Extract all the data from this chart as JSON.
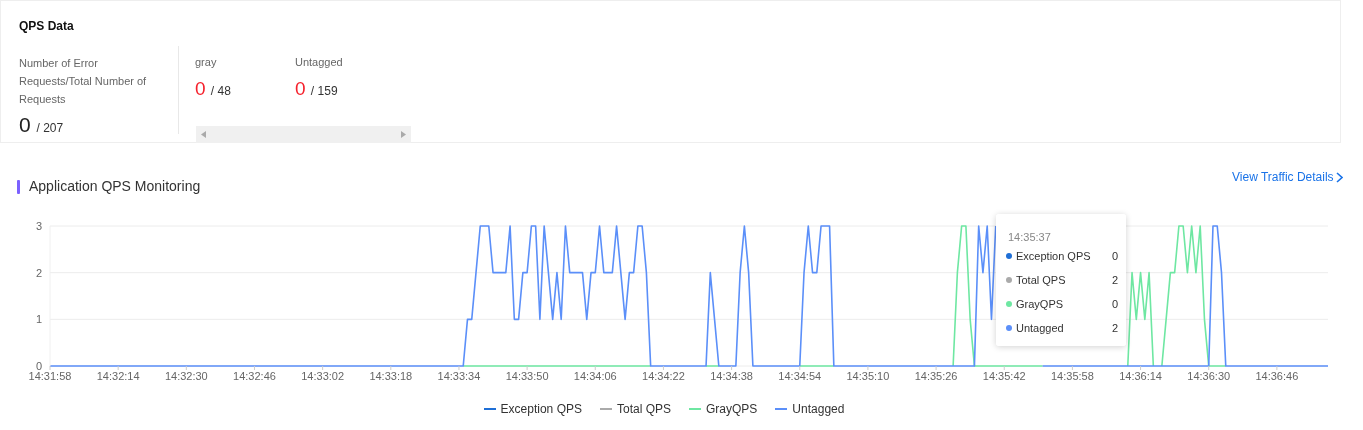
{
  "chart_data": {
    "type": "line",
    "title": "Application QPS Monitoring",
    "categories": [
      "14:31:58",
      null,
      null,
      null,
      null,
      null,
      null,
      null,
      null,
      null,
      null,
      null,
      null,
      null,
      null,
      null,
      "14:32:14",
      null,
      null,
      null,
      null,
      null,
      null,
      null,
      null,
      null,
      null,
      null,
      null,
      null,
      null,
      null,
      "14:32:30",
      null,
      null,
      null,
      null,
      null,
      null,
      null,
      null,
      null,
      null,
      null,
      null,
      null,
      null,
      null,
      "14:32:46",
      null,
      null,
      null,
      null,
      null,
      null,
      null,
      null,
      null,
      null,
      null,
      null,
      null,
      null,
      null,
      "14:33:02",
      null,
      null,
      null,
      null,
      null,
      null,
      null,
      null,
      null,
      null,
      null,
      null,
      null,
      null,
      null,
      "14:33:18",
      null,
      null,
      null,
      null,
      null,
      null,
      null,
      null,
      null,
      null,
      null,
      null,
      null,
      null,
      null,
      "14:33:34",
      null,
      null,
      null,
      null,
      null,
      null,
      null,
      null,
      null,
      null,
      null,
      null,
      null,
      null,
      null,
      "14:33:50",
      null,
      null,
      null,
      null,
      null,
      null,
      null,
      null,
      null,
      null,
      null,
      null,
      null,
      null,
      null,
      "14:34:06",
      null,
      null,
      null,
      null,
      null,
      null,
      null,
      null,
      null,
      null,
      null,
      null,
      null,
      null,
      null,
      "14:34:22",
      null,
      null,
      null,
      null,
      null,
      null,
      null,
      null,
      null,
      null,
      null,
      null,
      null,
      null,
      null,
      "14:34:38",
      null,
      null,
      null,
      null,
      null,
      null,
      null,
      null,
      null,
      null,
      null,
      null,
      null,
      null,
      null,
      "14:34:54",
      null,
      null,
      null,
      null,
      null,
      null,
      null,
      null,
      null,
      null,
      null,
      null,
      null,
      null,
      null,
      "14:35:10",
      null,
      null,
      null,
      null,
      null,
      null,
      null,
      null,
      null,
      null,
      null,
      null,
      null,
      null,
      null,
      "14:35:26",
      null,
      null,
      null,
      null,
      null,
      null,
      null,
      null,
      null,
      null,
      null,
      null,
      null,
      null,
      null,
      "14:35:42",
      null,
      null,
      null,
      null,
      null,
      null,
      null,
      null,
      null,
      null,
      null,
      null,
      null,
      null,
      null,
      "14:35:58",
      null,
      null,
      null,
      null,
      null,
      null,
      null,
      null,
      null,
      null,
      null,
      null,
      null,
      null,
      null,
      "14:36:14",
      null,
      null,
      null,
      null,
      null,
      null,
      null,
      null,
      null,
      null,
      null,
      null,
      null,
      null,
      null,
      "14:36:30",
      null,
      null,
      null,
      null,
      null,
      null,
      null,
      null,
      null,
      null,
      null,
      null,
      null,
      null,
      null,
      "14:36:46",
      null,
      null,
      null,
      null,
      null,
      null,
      null,
      null,
      null,
      null,
      null,
      null
    ],
    "series": [
      {
        "name": "Exception QPS",
        "color": "#1f6fd6",
        "values": [
          null,
          null,
          null,
          null,
          null,
          null,
          null,
          null,
          null,
          null,
          null,
          null,
          null,
          null,
          null,
          null,
          null,
          null,
          null,
          null,
          null,
          null,
          null,
          null,
          null,
          null,
          null,
          null,
          null,
          null,
          null,
          null,
          null,
          null,
          null,
          null,
          null,
          null,
          null,
          null,
          null,
          null,
          null,
          null,
          null,
          null,
          null,
          null,
          null,
          null,
          null,
          null,
          null,
          null,
          null,
          null,
          null,
          null,
          null,
          null,
          null,
          null,
          null,
          null,
          null,
          null,
          null,
          null,
          null,
          null,
          null,
          null,
          null,
          null,
          null,
          null,
          null,
          null,
          null,
          null,
          null,
          null,
          null,
          null,
          null,
          null,
          null,
          null,
          null,
          null,
          null,
          null,
          null,
          null,
          null,
          null,
          null,
          null,
          null,
          null,
          null,
          null,
          null,
          null,
          null,
          null,
          null,
          null,
          null,
          null,
          null,
          null,
          null,
          null,
          null,
          null,
          null,
          null,
          null,
          null,
          null,
          null,
          null,
          null,
          null,
          null,
          null,
          null,
          null,
          null,
          null,
          null,
          null,
          null,
          null,
          null,
          null,
          null,
          null,
          null,
          null,
          null,
          null,
          null,
          null,
          null,
          null,
          null,
          null,
          null,
          null,
          null,
          null,
          null,
          null,
          null,
          null,
          null,
          null,
          null,
          null,
          null,
          null,
          null,
          null,
          null,
          null,
          null,
          null,
          null,
          null,
          null,
          null,
          null,
          null,
          null,
          null,
          null,
          null,
          null,
          null,
          null,
          null,
          null,
          null,
          null,
          null,
          null,
          null,
          null,
          null,
          null,
          null,
          null,
          null,
          null,
          null,
          null,
          null,
          null,
          null,
          null,
          null,
          null,
          null,
          null,
          null,
          null,
          null,
          null,
          null,
          null,
          null,
          null,
          null,
          null,
          null,
          null,
          null,
          null,
          null,
          null,
          null,
          null,
          null,
          null,
          null,
          null,
          null,
          null,
          null,
          null,
          null,
          null,
          null,
          null,
          null,
          null,
          null,
          null,
          null,
          null,
          null,
          null,
          null,
          null,
          null,
          null,
          null,
          null,
          null,
          null,
          null,
          null,
          null,
          null,
          null,
          null,
          null,
          null,
          null,
          null,
          null,
          null,
          null,
          null,
          null,
          null,
          null,
          null,
          null,
          null,
          null,
          null,
          null,
          null,
          null,
          null,
          null,
          null,
          null,
          null,
          null,
          null,
          null,
          null,
          null,
          null,
          null,
          null,
          null,
          null,
          null,
          null,
          null,
          null,
          null,
          null,
          null,
          null,
          null
        ]
      },
      {
        "name": "Total QPS",
        "color": "#aaaaaa",
        "values": [
          null,
          null,
          null,
          null,
          null,
          null,
          null,
          null,
          null,
          null,
          null,
          null,
          null,
          null,
          null,
          null,
          null,
          null,
          null,
          null,
          null,
          null,
          null,
          null,
          null,
          null,
          null,
          null,
          null,
          null,
          null,
          null,
          null,
          null,
          null,
          null,
          null,
          null,
          null,
          null,
          null,
          null,
          null,
          null,
          null,
          null,
          null,
          null,
          null,
          null,
          null,
          null,
          null,
          null,
          null,
          null,
          null,
          null,
          null,
          null,
          null,
          null,
          null,
          null,
          null,
          null,
          null,
          null,
          null,
          null,
          null,
          null,
          null,
          null,
          null,
          null,
          null,
          null,
          null,
          null,
          null,
          null,
          null,
          null,
          null,
          null,
          null,
          null,
          null,
          null,
          null,
          null,
          null,
          null,
          null,
          null,
          null,
          null,
          null,
          null,
          null,
          null,
          null,
          null,
          null,
          null,
          null,
          null,
          null,
          null,
          null,
          null,
          null,
          null,
          null,
          null,
          null,
          null,
          null,
          null,
          null,
          null,
          null,
          null,
          null,
          null,
          null,
          null,
          null,
          null,
          null,
          null,
          null,
          null,
          null,
          null,
          null,
          null,
          null,
          null,
          null,
          null,
          null,
          null,
          null,
          null,
          null,
          null,
          null,
          null,
          null,
          null,
          null,
          null,
          null,
          null,
          null,
          null,
          null,
          null,
          null,
          null,
          null,
          null,
          null,
          null,
          null,
          null,
          null,
          null,
          null,
          null,
          null,
          null,
          null,
          null,
          null,
          null,
          null,
          null,
          null,
          null,
          null,
          null,
          null,
          null,
          null,
          null,
          null,
          null,
          null,
          null,
          null,
          null,
          null,
          null,
          null,
          null,
          null,
          null,
          null,
          null,
          null,
          null,
          null,
          null,
          null,
          null,
          null,
          null,
          null,
          null,
          null,
          null,
          null,
          null,
          null,
          null,
          null,
          null,
          null,
          null,
          null,
          null,
          null,
          null,
          null,
          null,
          null,
          null,
          null,
          null,
          null,
          null,
          null,
          null,
          null,
          null,
          null,
          null,
          null,
          null,
          null,
          null,
          null,
          null,
          null,
          null,
          null,
          null,
          null,
          null,
          null,
          null,
          null,
          null,
          null,
          null,
          null,
          null,
          null,
          null,
          null,
          null,
          null,
          null,
          null,
          null,
          null,
          null,
          null,
          null,
          null,
          null,
          null,
          null,
          null,
          null,
          null,
          null,
          null,
          null,
          null,
          null,
          null,
          null,
          null,
          null,
          null,
          null,
          null,
          null,
          null,
          null,
          null,
          null,
          null,
          null,
          null,
          null,
          null
        ]
      },
      {
        "name": "GrayQPS",
        "color": "#6ee7a2",
        "values": [
          null,
          null,
          null,
          null,
          null,
          null,
          null,
          null,
          null,
          null,
          null,
          null,
          null,
          null,
          null,
          null,
          null,
          null,
          null,
          null,
          null,
          null,
          null,
          null,
          null,
          null,
          null,
          null,
          null,
          null,
          null,
          null,
          null,
          null,
          null,
          null,
          null,
          null,
          null,
          null,
          null,
          null,
          null,
          null,
          null,
          null,
          null,
          null,
          null,
          null,
          null,
          null,
          null,
          null,
          null,
          null,
          null,
          null,
          null,
          null,
          null,
          null,
          null,
          null,
          null,
          null,
          null,
          null,
          null,
          null,
          null,
          null,
          null,
          null,
          null,
          null,
          null,
          null,
          null,
          null,
          null,
          null,
          null,
          null,
          null,
          null,
          null,
          null,
          null,
          null,
          null,
          null,
          null,
          null,
          null,
          null,
          null,
          0,
          0,
          0,
          0,
          0,
          0,
          0,
          0,
          0,
          0,
          0,
          0,
          0,
          0,
          0,
          0,
          0,
          0,
          0,
          0,
          0,
          0,
          0,
          0,
          0,
          0,
          0,
          0,
          0,
          0,
          0,
          0,
          0,
          0,
          0,
          0,
          0,
          0,
          0,
          0,
          0,
          0,
          0,
          0,
          0,
          null,
          null,
          null,
          null,
          null,
          null,
          null,
          null,
          null,
          null,
          null,
          null,
          0,
          0,
          0,
          0,
          null,
          null,
          null,
          null,
          null,
          null,
          null,
          null,
          null,
          null,
          null,
          null,
          null,
          null,
          null,
          null,
          null,
          null,
          0,
          0,
          0,
          0,
          0,
          0,
          0,
          0,
          0,
          null,
          null,
          null,
          null,
          null,
          null,
          null,
          null,
          null,
          null,
          null,
          null,
          null,
          null,
          null,
          null,
          null,
          null,
          null,
          null,
          null,
          null,
          null,
          null,
          null,
          null,
          null,
          0,
          2,
          3,
          3,
          1,
          0,
          0,
          0,
          0,
          0,
          0,
          0,
          0,
          0,
          0,
          0,
          0,
          0,
          0,
          0,
          0,
          0,
          null,
          null,
          null,
          null,
          null,
          null,
          null,
          null,
          null,
          null,
          null,
          null,
          null,
          null,
          null,
          null,
          null,
          null,
          null,
          0,
          2,
          1,
          2,
          1,
          2,
          0,
          null,
          0,
          1,
          2,
          2,
          3,
          3,
          2,
          3,
          2,
          3,
          1,
          0,
          0,
          0,
          0,
          0,
          null,
          null,
          null,
          null,
          null,
          null,
          null,
          null,
          null,
          null,
          null,
          null,
          null,
          null,
          null,
          null,
          null,
          null,
          null,
          null,
          null,
          null,
          null,
          null
        ]
      },
      {
        "name": "Untagged",
        "color": "#5b8ff9",
        "values": [
          0,
          0,
          0,
          0,
          0,
          0,
          0,
          0,
          0,
          0,
          0,
          0,
          0,
          0,
          0,
          0,
          0,
          0,
          0,
          0,
          0,
          0,
          0,
          0,
          0,
          0,
          0,
          0,
          0,
          0,
          0,
          0,
          0,
          0,
          0,
          0,
          0,
          0,
          0,
          0,
          0,
          0,
          0,
          0,
          0,
          0,
          0,
          0,
          0,
          0,
          0,
          0,
          0,
          0,
          0,
          0,
          0,
          0,
          0,
          0,
          0,
          0,
          0,
          0,
          0,
          0,
          0,
          0,
          0,
          0,
          0,
          0,
          0,
          0,
          0,
          0,
          0,
          0,
          0,
          0,
          0,
          0,
          0,
          0,
          0,
          0,
          0,
          0,
          0,
          0,
          0,
          0,
          0,
          0,
          0,
          0,
          0,
          0,
          1,
          1,
          2,
          3,
          3,
          3,
          2,
          2,
          2,
          2,
          3,
          1,
          1,
          2,
          2,
          3,
          3,
          1,
          3,
          2,
          1,
          2,
          1,
          3,
          2,
          2,
          2,
          2,
          1,
          2,
          2,
          3,
          2,
          2,
          2,
          3,
          2,
          1,
          2,
          2,
          3,
          3,
          2,
          0,
          0,
          0,
          0,
          0,
          0,
          0,
          0,
          0,
          0,
          0,
          0,
          0,
          0,
          2,
          1,
          0,
          0,
          0,
          0,
          0,
          2,
          3,
          2,
          0,
          0,
          0,
          0,
          0,
          0,
          0,
          0,
          0,
          0,
          0,
          0,
          2,
          3,
          2,
          2,
          3,
          3,
          3,
          0,
          0,
          0,
          0,
          0,
          0,
          0,
          0,
          0,
          0,
          0,
          0,
          0,
          0,
          0,
          0,
          0,
          0,
          0,
          0,
          0,
          0,
          0,
          0,
          0,
          0,
          0,
          0,
          0,
          0,
          0,
          0,
          0,
          0,
          3,
          2,
          3,
          1,
          3,
          null,
          null,
          null,
          null,
          null,
          null,
          null,
          null,
          null,
          null,
          0,
          0,
          0,
          0,
          0,
          0,
          0,
          0,
          0,
          0,
          0,
          0,
          0,
          0,
          0,
          0,
          0,
          0,
          0,
          0,
          0,
          0,
          0,
          0,
          0,
          0,
          0,
          0,
          0,
          0,
          0,
          0,
          0,
          0,
          0,
          0,
          0,
          0,
          0,
          0,
          3,
          3,
          2,
          0,
          0,
          0,
          0,
          0,
          0,
          0,
          0,
          0,
          0,
          0,
          0,
          0,
          0,
          0,
          0,
          0,
          0,
          0,
          0,
          0,
          0,
          0,
          0,
          0
        ]
      }
    ],
    "ylim": [
      0,
      3
    ],
    "yticks": [
      0,
      1,
      2,
      3
    ],
    "grid": "y",
    "legend": "bottom",
    "marker": "none",
    "line_style": "solid",
    "annotations": [
      "QPS Data",
      "Number of Error Requests/Total Number of Requests",
      "0 / 207",
      "gray",
      "0 / 48",
      "Untagged",
      "0 / 159",
      "View Traffic Details",
      "14:35:37",
      "Exception QPS",
      "0",
      "Total QPS",
      "2",
      "GrayQPS",
      "0",
      "Untagged",
      "2"
    ]
  }
}
